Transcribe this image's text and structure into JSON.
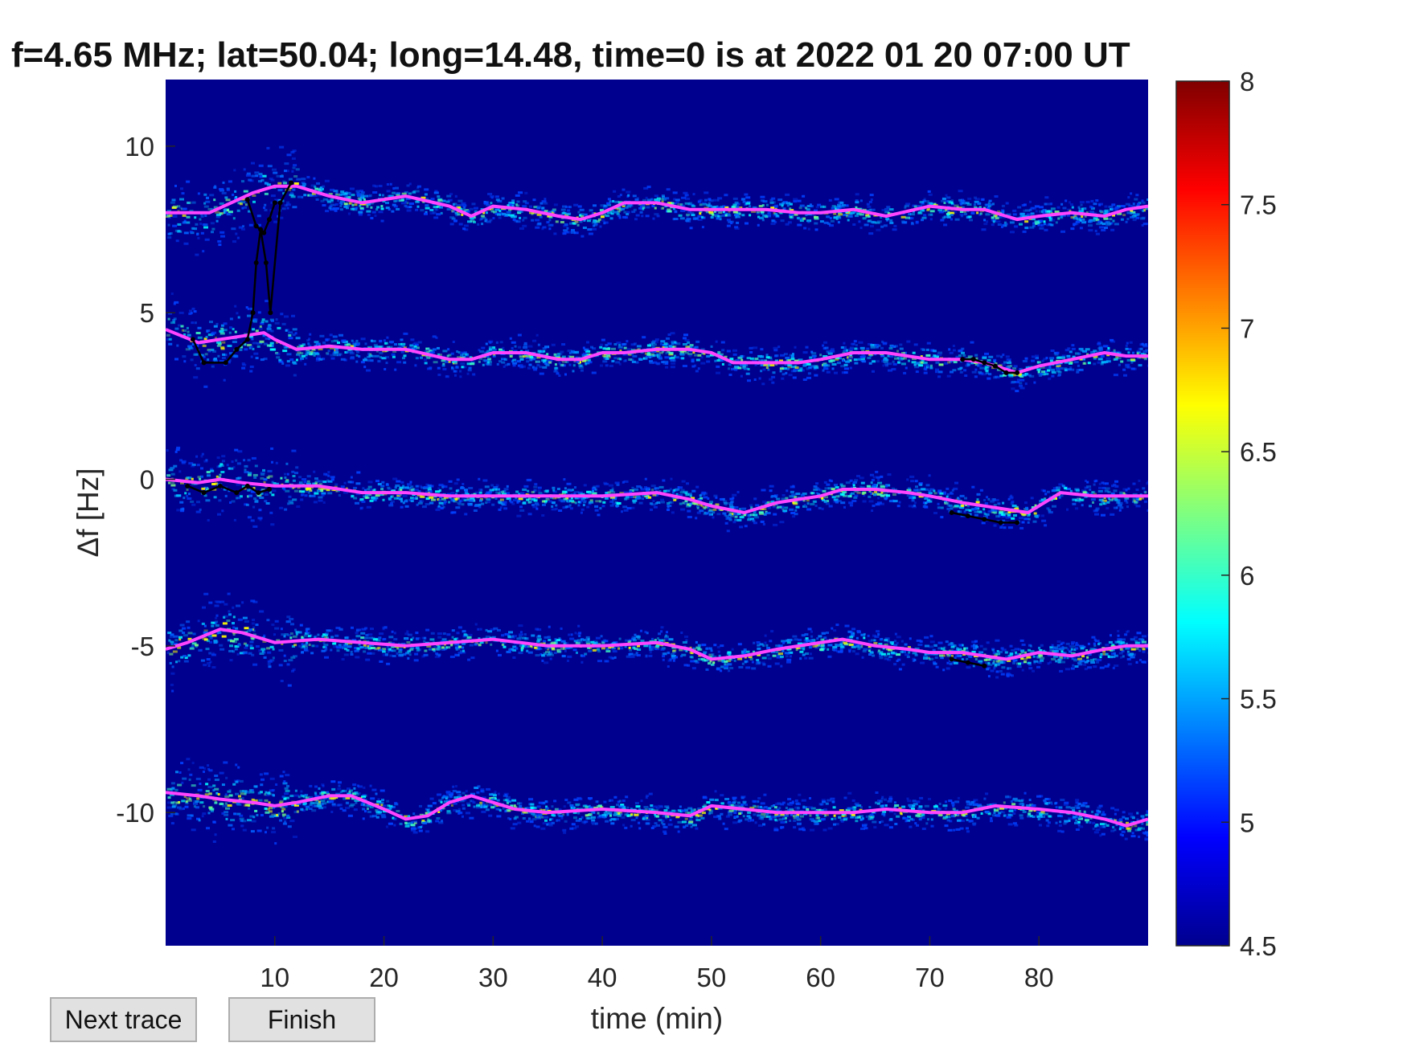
{
  "chart_data": {
    "type": "heatmap",
    "title": "f=4.65 MHz;  lat=50.04; long=14.48, time=0 is at 2022 01 20 07:00 UT",
    "xlabel": "time (min)",
    "ylabel": "Δf [Hz]",
    "xlim": [
      0,
      90
    ],
    "ylim": [
      -14,
      12
    ],
    "xticks": [
      10,
      20,
      30,
      40,
      50,
      60,
      70,
      80
    ],
    "yticks": [
      10,
      5,
      0,
      -5,
      -10
    ],
    "colorbar": {
      "min": 4.5,
      "max": 8,
      "ticks": [
        8,
        7.5,
        7,
        6.5,
        6,
        5.5,
        5,
        4.5
      ],
      "colormap": "jet"
    },
    "background_color": "#00008f",
    "trace_color": "#ff44ff",
    "manual_trace_color": "#000000",
    "traces": [
      {
        "x": [
          0,
          4,
          6,
          8,
          9,
          10,
          11,
          12,
          15,
          18,
          22,
          26,
          28,
          30,
          33,
          36,
          38,
          40,
          42,
          45,
          48,
          50,
          52,
          55,
          58,
          60,
          63,
          66,
          70,
          73,
          75,
          77,
          78,
          80,
          83,
          86,
          88,
          90
        ],
        "y": [
          8.0,
          8.0,
          8.3,
          8.6,
          8.7,
          8.8,
          8.8,
          8.8,
          8.5,
          8.3,
          8.5,
          8.2,
          7.9,
          8.2,
          8.1,
          7.9,
          7.8,
          8.0,
          8.3,
          8.3,
          8.1,
          8.1,
          8.1,
          8.1,
          8.0,
          8.0,
          8.1,
          7.9,
          8.2,
          8.1,
          8.1,
          7.9,
          7.8,
          7.9,
          8.0,
          7.9,
          8.1,
          8.2
        ]
      },
      {
        "x": [
          0,
          3,
          5,
          7,
          9,
          10,
          12,
          15,
          18,
          22,
          26,
          28,
          30,
          33,
          36,
          38,
          40,
          42,
          45,
          48,
          50,
          52,
          55,
          58,
          60,
          63,
          66,
          70,
          73,
          75,
          77,
          78,
          80,
          83,
          86,
          88,
          90
        ],
        "y": [
          4.5,
          4.1,
          4.2,
          4.3,
          4.4,
          4.2,
          3.9,
          4.0,
          3.9,
          3.9,
          3.6,
          3.6,
          3.8,
          3.8,
          3.6,
          3.6,
          3.8,
          3.8,
          3.9,
          3.9,
          3.8,
          3.5,
          3.5,
          3.5,
          3.6,
          3.8,
          3.8,
          3.6,
          3.6,
          3.5,
          3.3,
          3.2,
          3.4,
          3.6,
          3.8,
          3.7,
          3.7
        ]
      },
      {
        "x": [
          0,
          3,
          5,
          7,
          10,
          14,
          18,
          22,
          26,
          30,
          35,
          40,
          45,
          48,
          50,
          53,
          56,
          58,
          60,
          62,
          65,
          68,
          70,
          73,
          75,
          77,
          79,
          80,
          82,
          85,
          88,
          90
        ],
        "y": [
          0.0,
          -0.1,
          0.0,
          -0.1,
          -0.2,
          -0.2,
          -0.4,
          -0.4,
          -0.5,
          -0.5,
          -0.5,
          -0.5,
          -0.4,
          -0.6,
          -0.8,
          -1.0,
          -0.7,
          -0.6,
          -0.5,
          -0.3,
          -0.3,
          -0.4,
          -0.5,
          -0.7,
          -0.8,
          -0.9,
          -1.0,
          -0.8,
          -0.4,
          -0.5,
          -0.5,
          -0.5
        ]
      },
      {
        "x": [
          0,
          2,
          5,
          7,
          10,
          14,
          18,
          22,
          26,
          30,
          35,
          40,
          45,
          48,
          50,
          53,
          56,
          58,
          60,
          62,
          65,
          68,
          70,
          73,
          75,
          77,
          80,
          83,
          86,
          88,
          90
        ],
        "y": [
          -5.1,
          -4.9,
          -4.5,
          -4.6,
          -4.9,
          -4.8,
          -4.9,
          -5.0,
          -4.9,
          -4.8,
          -5.0,
          -5.0,
          -4.9,
          -5.1,
          -5.4,
          -5.3,
          -5.1,
          -5.0,
          -4.9,
          -4.8,
          -5.0,
          -5.1,
          -5.2,
          -5.2,
          -5.3,
          -5.4,
          -5.2,
          -5.3,
          -5.1,
          -5.0,
          -5.0
        ]
      },
      {
        "x": [
          0,
          3,
          5,
          8,
          10,
          12,
          15,
          17,
          20,
          22,
          24,
          26,
          28,
          30,
          32,
          35,
          40,
          45,
          48,
          50,
          53,
          56,
          60,
          63,
          66,
          70,
          73,
          76,
          80,
          83,
          86,
          88,
          90
        ],
        "y": [
          -9.4,
          -9.5,
          -9.6,
          -9.7,
          -9.8,
          -9.7,
          -9.5,
          -9.5,
          -9.9,
          -10.2,
          -10.1,
          -9.7,
          -9.5,
          -9.7,
          -9.9,
          -10.0,
          -9.9,
          -10.0,
          -10.1,
          -9.8,
          -9.9,
          -10.0,
          -10.0,
          -10.0,
          -9.9,
          -10.0,
          -10.0,
          -9.8,
          -9.9,
          -10.0,
          -10.2,
          -10.4,
          -10.2
        ]
      }
    ],
    "manual_traces": [
      {
        "x": [
          2.5,
          3.5,
          5.5,
          6.5,
          7.5,
          8.0,
          8.3,
          8.7,
          9.2,
          9.6,
          10.5,
          11.5
        ],
        "y": [
          4.2,
          3.5,
          3.5,
          3.9,
          4.2,
          5.0,
          6.5,
          7.5,
          6.5,
          5.0,
          8.3,
          8.9
        ]
      },
      {
        "x": [
          7.5,
          8.3,
          9.0,
          9.5,
          10.0
        ],
        "y": [
          8.4,
          7.6,
          7.4,
          7.8,
          8.3
        ]
      },
      {
        "x": [
          2,
          3.5,
          5,
          6.5,
          7.5,
          8.5,
          9.5
        ],
        "y": [
          -0.2,
          -0.4,
          -0.2,
          -0.4,
          -0.2,
          -0.4,
          -0.3
        ]
      },
      {
        "x": [
          73,
          74,
          75,
          76,
          77,
          78
        ],
        "y": [
          3.6,
          3.6,
          3.5,
          3.4,
          3.2,
          3.2
        ]
      },
      {
        "x": [
          72,
          73.5,
          75,
          76.5,
          78
        ],
        "y": [
          -1.0,
          -1.1,
          -1.2,
          -1.3,
          -1.3
        ]
      },
      {
        "x": [
          72,
          73.5,
          75
        ],
        "y": [
          -5.4,
          -5.5,
          -5.6
        ]
      }
    ]
  },
  "ui": {
    "next_button_label": "Next trace",
    "finish_button_label": "Finish"
  }
}
